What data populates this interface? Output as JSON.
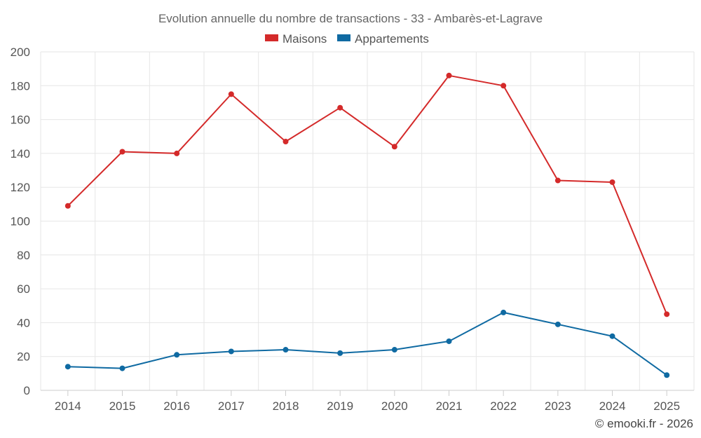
{
  "chart_data": {
    "type": "line",
    "title": "Evolution annuelle du nombre de transactions - 33 - Ambarès-et-Lagrave",
    "xlabel": "",
    "ylabel": "",
    "categories": [
      "2014",
      "2015",
      "2016",
      "2017",
      "2018",
      "2019",
      "2020",
      "2021",
      "2022",
      "2023",
      "2024",
      "2025"
    ],
    "ylim": [
      0,
      200
    ],
    "yticks": [
      0,
      20,
      40,
      60,
      80,
      100,
      120,
      140,
      160,
      180,
      200
    ],
    "grid": true,
    "legend": "top-center",
    "series": [
      {
        "name": "Maisons",
        "color": "#d42a2a",
        "values": [
          109,
          141,
          140,
          175,
          147,
          167,
          144,
          186,
          180,
          124,
          123,
          45
        ]
      },
      {
        "name": "Appartements",
        "color": "#0f6aa2",
        "values": [
          14,
          13,
          21,
          23,
          24,
          22,
          24,
          29,
          46,
          39,
          32,
          9
        ]
      }
    ]
  },
  "credit": "© emooki.fr - 2026"
}
